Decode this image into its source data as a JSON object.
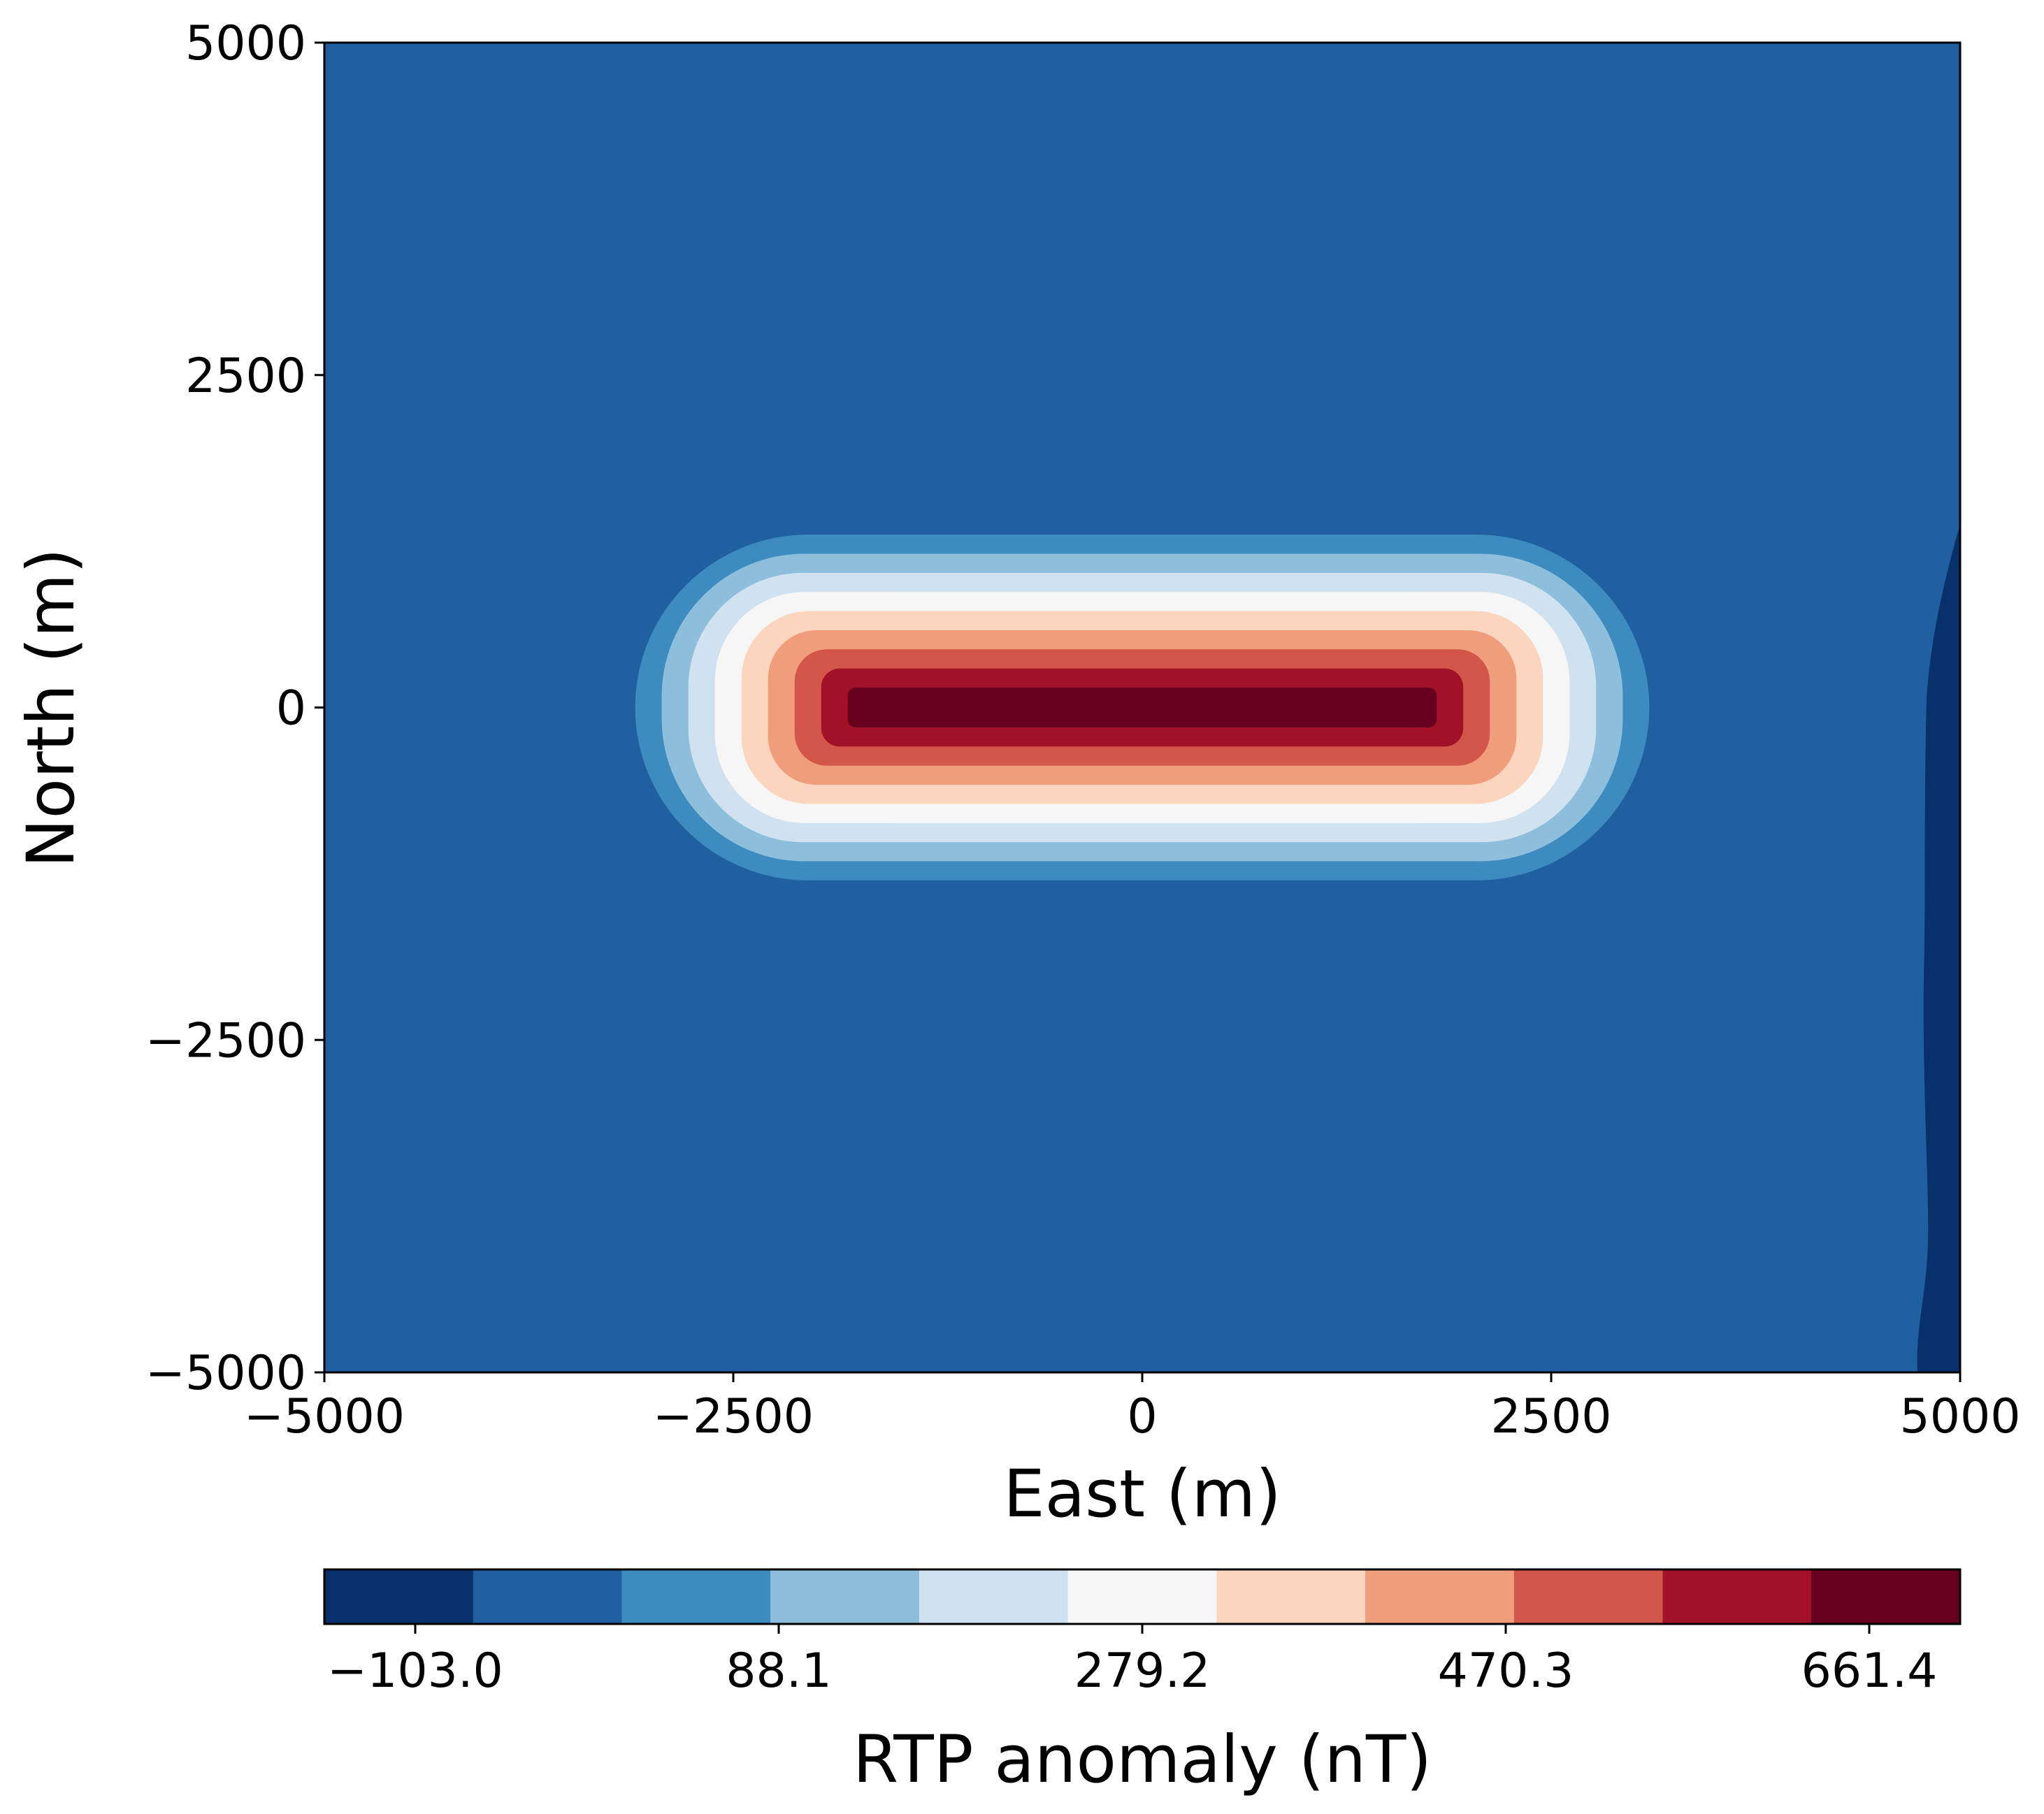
{
  "chart_data": {
    "type": "contour",
    "x": {
      "label": "East (m)",
      "lim": [
        -5000,
        5000
      ],
      "ticks": [
        -5000,
        -2500,
        0,
        2500,
        5000
      ],
      "tick_labels": [
        "−5000",
        "−2500",
        "0",
        "2500",
        "5000"
      ]
    },
    "y": {
      "label": "North (m)",
      "lim": [
        -5000,
        5000
      ],
      "ticks": [
        -5000,
        -2500,
        0,
        2500,
        5000
      ],
      "tick_labels": [
        "−5000",
        "−2500",
        "0",
        "2500",
        "5000"
      ]
    },
    "background_level_color": "#2060a0",
    "anomaly": {
      "description": "elongated east-west positive RTP anomaly centred at North 0",
      "east_extent": [
        -3100,
        3100
      ],
      "north_extent": [
        -1300,
        1300
      ],
      "peak_band_east": [
        -1800,
        1800
      ],
      "peak_band_north": [
        -150,
        150
      ]
    },
    "low_region": {
      "east_extent": [
        4650,
        5000
      ],
      "north_extent": [
        -5000,
        1400
      ],
      "color": "#08306b"
    },
    "colorbar": {
      "label": "RTP anomaly (nT)",
      "colors": [
        "#08306b",
        "#2060a0",
        "#3e8bc0",
        "#8dbfdc",
        "#d0e2ef",
        "#f6f6f6",
        "#fcd5bf",
        "#f09d7b",
        "#d2564a",
        "#a11228",
        "#67001f"
      ],
      "tick_labels": [
        "−103.0",
        "88.1",
        "279.2",
        "470.3",
        "661.4"
      ],
      "tick_values": [
        -103.0,
        88.1,
        279.2,
        470.3,
        661.4
      ]
    }
  }
}
